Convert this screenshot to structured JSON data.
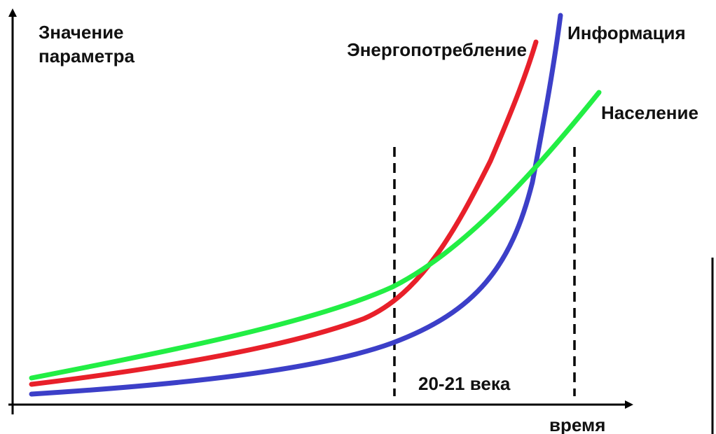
{
  "axis_label_y": [
    "Значение",
    "параметра"
  ],
  "axis_label_x": "время",
  "curves": [
    {
      "label": "Энергопотребление"
    },
    {
      "label": "Информация"
    },
    {
      "label": "Население"
    }
  ],
  "period_label": "20-21 века"
}
